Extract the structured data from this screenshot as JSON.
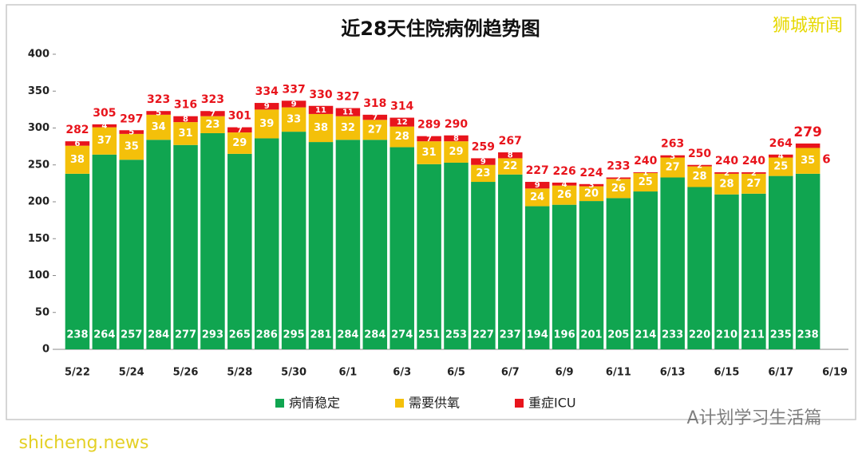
{
  "chart_data": {
    "type": "stacked_bar",
    "title": "近28天住院病例趋势图",
    "watermarks": [
      "狮城新闻",
      "A计划学习生活篇",
      "shicheng.news"
    ],
    "categories": [
      "5/22",
      null,
      "5/24",
      null,
      "5/26",
      null,
      "5/28",
      null,
      "5/30",
      null,
      "6/1",
      null,
      "6/3",
      null,
      "6/5",
      null,
      "6/7",
      null,
      "6/9",
      null,
      "6/11",
      null,
      "6/13",
      null,
      "6/15",
      null,
      "6/17",
      null,
      "6/19"
    ],
    "series": [
      {
        "name": "病情稳定",
        "color": "#10a550",
        "values": [
          238,
          264,
          257,
          284,
          277,
          293,
          265,
          286,
          295,
          281,
          284,
          284,
          274,
          251,
          253,
          227,
          237,
          194,
          196,
          201,
          205,
          214,
          233,
          220,
          210,
          211,
          235,
          238,
          null
        ]
      },
      {
        "name": "需要供氧",
        "color": "#f4c00a",
        "values": [
          38,
          37,
          35,
          34,
          31,
          23,
          29,
          39,
          33,
          38,
          32,
          27,
          28,
          31,
          29,
          23,
          22,
          24,
          26,
          20,
          26,
          25,
          27,
          28,
          28,
          27,
          25,
          35,
          null
        ]
      },
      {
        "name": "重症ICU",
        "color": "#e8141c",
        "values": [
          6,
          4,
          5,
          5,
          8,
          7,
          7,
          9,
          9,
          11,
          11,
          7,
          12,
          7,
          8,
          9,
          8,
          9,
          4,
          3,
          2,
          1,
          3,
          2,
          2,
          2,
          4,
          6,
          null
        ]
      }
    ],
    "totals": [
      282,
      305,
      297,
      323,
      316,
      323,
      301,
      334,
      337,
      330,
      327,
      318,
      314,
      289,
      290,
      259,
      267,
      227,
      226,
      224,
      233,
      240,
      263,
      250,
      240,
      240,
      264,
      279,
      null
    ],
    "ylim": [
      0,
      400
    ],
    "yticks": [
      0,
      50,
      100,
      150,
      200,
      250,
      300,
      350,
      400
    ],
    "grid": false
  }
}
